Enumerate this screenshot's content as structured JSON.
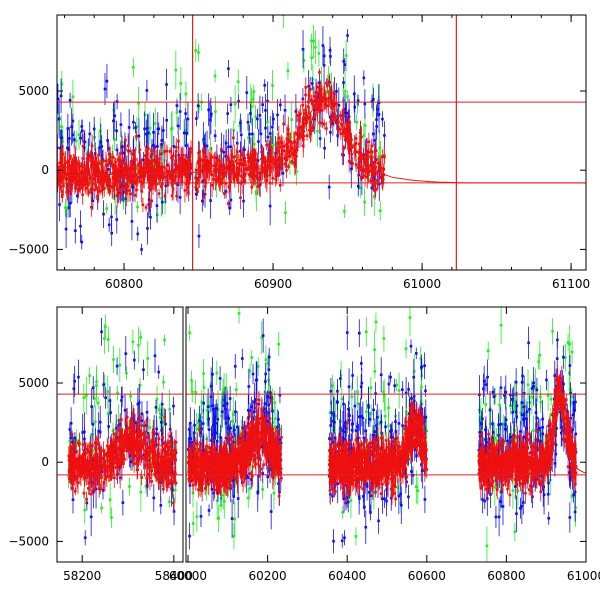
{
  "chart_data": [
    {
      "type": "scatter",
      "panel": "top",
      "title": "",
      "xlabel": "",
      "ylabel": "",
      "xlim": [
        60755,
        61110
      ],
      "ylim": [
        -6300,
        9800
      ],
      "x_ticks": [
        60800,
        60900,
        61000,
        61100
      ],
      "x_tick_labels": [
        "60800",
        "60900",
        "61000",
        "61100"
      ],
      "y_ticks": [
        -5000,
        0,
        5000
      ],
      "y_tick_labels": [
        "−5000",
        "0",
        "5000"
      ],
      "error_bars": true,
      "grid": false,
      "colors": {
        "green": "#22ee22",
        "blue": "#1010ee",
        "red": "#ee1010",
        "lines": "#dd2020"
      },
      "hlines": [
        4300,
        -800
      ],
      "vlines": [
        60846,
        61023
      ],
      "gaps": [
        60846
      ],
      "model_curve": [
        [
          60755,
          -350
        ],
        [
          60800,
          -250
        ],
        [
          60840,
          -150
        ],
        [
          60880,
          -50
        ],
        [
          60900,
          150
        ],
        [
          60915,
          1500
        ],
        [
          60925,
          3600
        ],
        [
          60932,
          4600
        ],
        [
          60938,
          4300
        ],
        [
          60946,
          2800
        ],
        [
          60955,
          1300
        ],
        [
          60962,
          500
        ],
        [
          60970,
          -100
        ],
        [
          60980,
          -450
        ],
        [
          60995,
          -650
        ],
        [
          61010,
          -750
        ],
        [
          61030,
          -800
        ],
        [
          61110,
          -800
        ]
      ],
      "series": [
        {
          "color": "green",
          "x_range": [
            60755,
            60975
          ],
          "center": 1200,
          "spread": 3600
        },
        {
          "color": "blue",
          "x_range": [
            60755,
            60975
          ],
          "center": 500,
          "spread": 2600
        },
        {
          "color": "red",
          "x_range": [
            60755,
            60975
          ],
          "center": -300,
          "spread": 900
        }
      ]
    },
    {
      "type": "scatter",
      "panel": "bottom",
      "title": "",
      "xlabel": "",
      "ylabel": "",
      "ylim": [
        -6300,
        9800
      ],
      "y_ticks": [
        -5000,
        0,
        5000
      ],
      "y_tick_labels": [
        "−5000",
        "0",
        "5000"
      ],
      "error_bars": true,
      "grid": false,
      "hlines": [
        4300,
        -800
      ],
      "segments": [
        {
          "xlim": [
            58145,
            58420
          ],
          "x_ticks": [
            58200,
            58400
          ],
          "x_tick_labels": [
            "58200",
            "58400"
          ],
          "data_range": [
            58170,
            58405
          ]
        },
        {
          "xlim": [
            59995,
            61000
          ],
          "x_ticks": [
            60000,
            60200,
            60400,
            60600,
            60800,
            61000
          ],
          "x_tick_labels": [
            "60000",
            "60200",
            "60400",
            "60600",
            "60800",
            "61000"
          ],
          "data_ranges": [
            [
              60000,
              60235
            ],
            [
              60355,
              60600
            ],
            [
              60730,
              60975
            ]
          ]
        }
      ]
    }
  ]
}
